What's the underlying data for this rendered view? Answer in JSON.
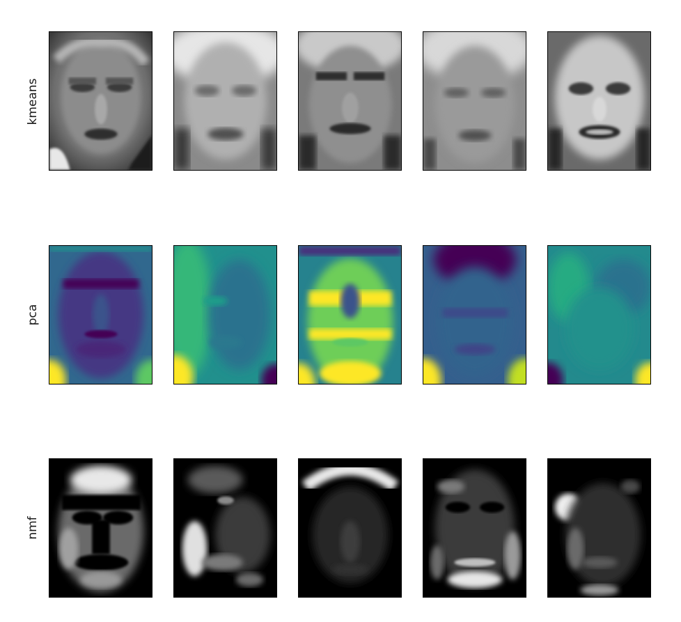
{
  "rows": [
    {
      "label": "kmeans",
      "colormap": "gray"
    },
    {
      "label": "pca",
      "colormap": "viridis"
    },
    {
      "label": "nmf",
      "colormap": "gray"
    }
  ],
  "palette": {
    "viridis_dark": "#440154",
    "viridis_blue": "#3b528b",
    "viridis_teal": "#21908d",
    "viridis_green": "#5dc863",
    "viridis_yellow": "#fde725"
  }
}
